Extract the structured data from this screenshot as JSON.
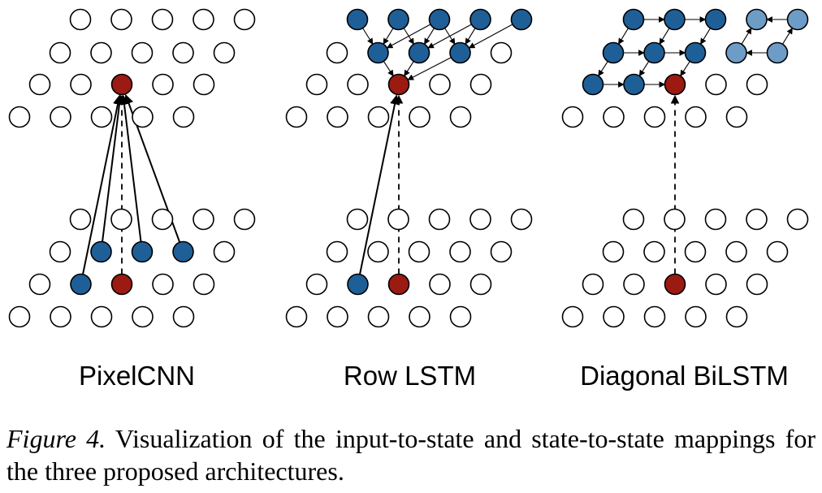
{
  "panels": [
    {
      "label": "PixelCNN"
    },
    {
      "label": "Row LSTM"
    },
    {
      "label": "Diagonal BiLSTM"
    }
  ],
  "caption": {
    "label": "Figure 4.",
    "text": "Visualization of the input-to-state and state-to-state mappings for the three proposed architectures."
  },
  "colors": {
    "target": "#9b1a12",
    "context": "#1f5f98",
    "context_light": "#6d9cc7",
    "empty": "#ffffff",
    "stroke": "#000000"
  }
}
